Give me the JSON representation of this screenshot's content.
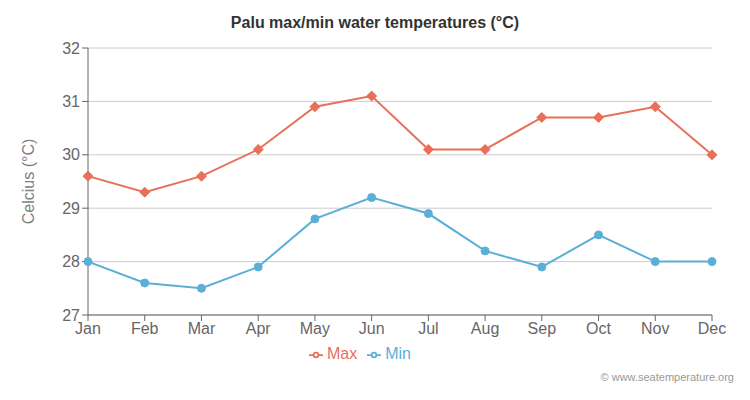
{
  "chart_data": {
    "type": "line",
    "title": "Palu max/min water temperatures (°C)",
    "y_label": "Celcius (°C)",
    "categories": [
      "Jan",
      "Feb",
      "Mar",
      "Apr",
      "May",
      "Jun",
      "Jul",
      "Aug",
      "Sep",
      "Oct",
      "Nov",
      "Dec"
    ],
    "series": [
      {
        "name": "Max",
        "color": "#e8705a",
        "marker": "diamond",
        "values": [
          29.6,
          29.3,
          29.6,
          30.1,
          30.9,
          31.1,
          30.1,
          30.1,
          30.7,
          30.7,
          30.9,
          30.0
        ]
      },
      {
        "name": "Min",
        "color": "#5bafd6",
        "marker": "circle",
        "values": [
          28.0,
          27.6,
          27.5,
          27.9,
          28.8,
          29.2,
          28.9,
          28.2,
          27.9,
          28.5,
          28.0,
          28.0
        ]
      }
    ],
    "ylim": [
      27,
      32
    ],
    "yticks": [
      27,
      28,
      29,
      30,
      31,
      32
    ],
    "grid": true,
    "legend": "bottom",
    "annotations": [
      "© www.seatemperature.org"
    ]
  }
}
